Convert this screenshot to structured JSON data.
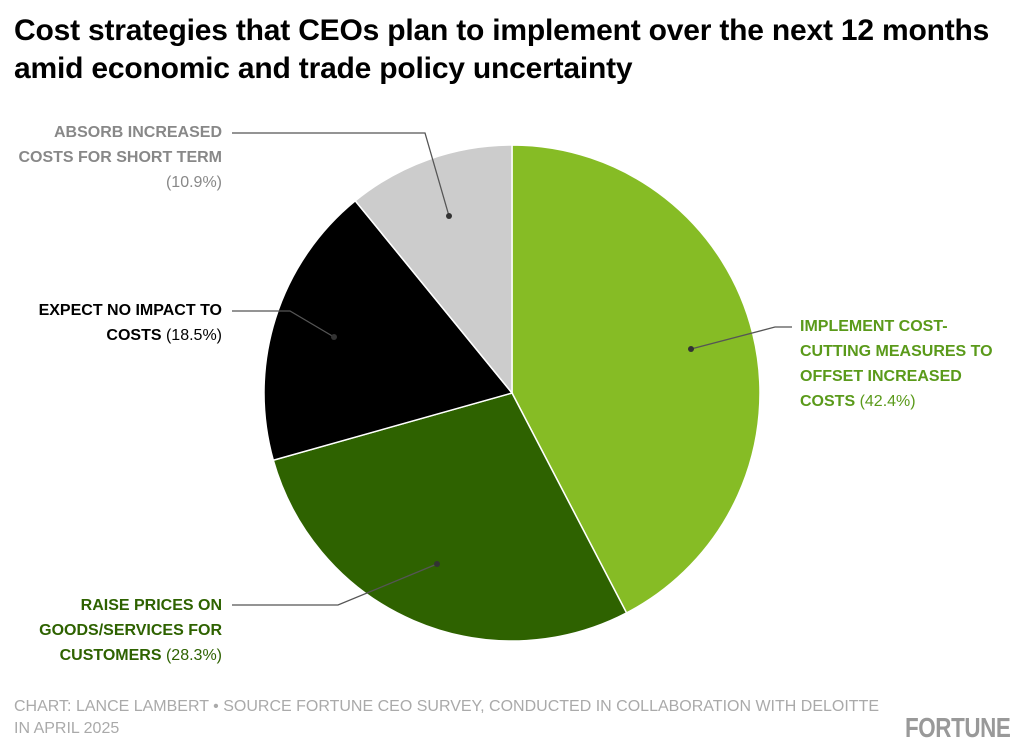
{
  "title": "Cost strategies that CEOs plan to implement over the next 12 months amid economic and trade policy uncertainty",
  "chart_data": {
    "type": "pie",
    "title": "Cost strategies that CEOs plan to implement over the next 12 months amid economic and trade policy uncertainty",
    "slices": [
      {
        "label": "IMPLEMENT COST-CUTTING MEASURES TO OFFSET INCREASED COSTS",
        "pct_text": "(42.4%)",
        "value": 42.4,
        "color": "#86bc25",
        "text_color": "#5a9a1a"
      },
      {
        "label": "RAISE PRICES ON GOODS/SERVICES FOR CUSTOMERS",
        "pct_text": "(28.3%)",
        "value": 28.3,
        "color": "#2e6200",
        "text_color": "#2e6200"
      },
      {
        "label": "EXPECT NO IMPACT TO COSTS",
        "pct_text": "(18.5%)",
        "value": 18.5,
        "color": "#000000",
        "text_color": "#000000"
      },
      {
        "label": "ABSORB INCREASED COSTS FOR SHORT TERM",
        "pct_text": "(10.9%)",
        "value": 10.9,
        "color": "#cccccc",
        "text_color": "#888888"
      }
    ],
    "start": "top",
    "direction": "clockwise"
  },
  "footer": {
    "credit": "CHART: LANCE LAMBERT • SOURCE FORTUNE CEO SURVEY, CONDUCTED IN COLLABORATION WITH DELOITTE IN APRIL 2025",
    "logo": "FORTUNE"
  }
}
